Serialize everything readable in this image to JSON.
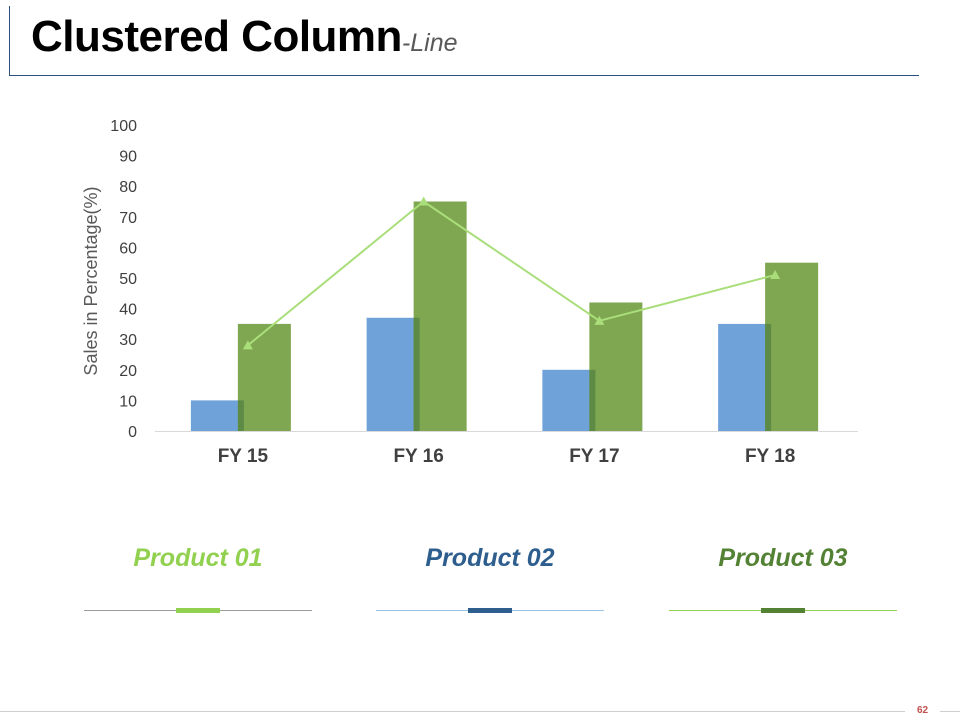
{
  "title": {
    "main": "Clustered Column",
    "sub": "-Line"
  },
  "page_number": "62",
  "colors": {
    "product_01": "#92d050",
    "product_02": "#2e5e8e",
    "product_03": "#548235",
    "bar_blue": "#6fa2d9",
    "bar_green": "#7fa651",
    "line_green": "#a9de7a"
  },
  "chart_data": {
    "type": "bar",
    "ylabel": "Sales in Percentage(%)",
    "xlabel": "",
    "ylim": [
      0,
      100
    ],
    "yticks": [
      0,
      10,
      20,
      30,
      40,
      50,
      60,
      70,
      80,
      90,
      100
    ],
    "categories": [
      "FY 15",
      "FY 16",
      "FY 17",
      "FY 18"
    ],
    "series": [
      {
        "type": "bar",
        "color": "#6fa2d9",
        "values": [
          10,
          37,
          20,
          35
        ]
      },
      {
        "type": "bar",
        "color": "#7fa651",
        "values": [
          35,
          75,
          42,
          55
        ]
      },
      {
        "type": "line",
        "marker": "triangle",
        "color": "#a9de7a",
        "values": [
          28,
          75,
          36,
          51
        ]
      }
    ],
    "grid": false
  },
  "legend": [
    {
      "label": "Product 01",
      "color": "#92d050",
      "line_color": "#9a9a9a"
    },
    {
      "label": "Product 02",
      "color": "#2e5e8e",
      "line_color": "#9dc3e6"
    },
    {
      "label": "Product 03",
      "color": "#548235",
      "line_color": "#92d050"
    }
  ]
}
